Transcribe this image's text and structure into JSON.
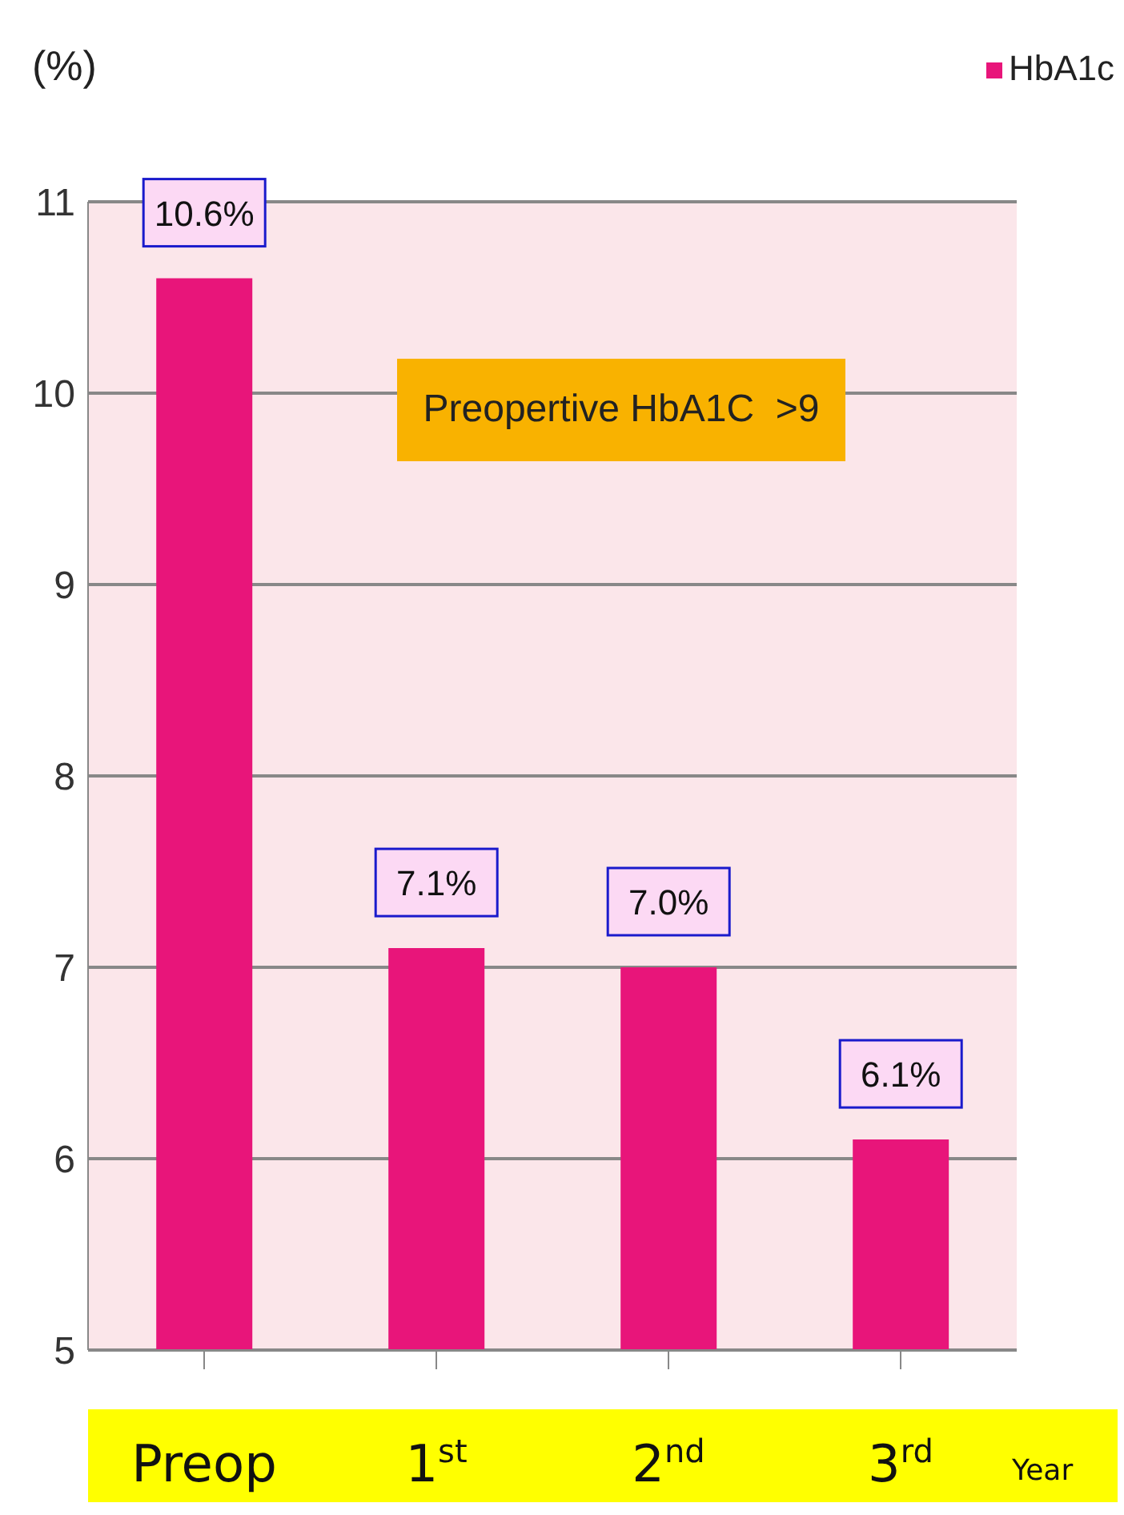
{
  "chart_data": {
    "type": "bar",
    "categories": [
      "Preop",
      "1$^{st}$",
      "2$^{nd}$",
      "3$^{rd}$"
    ],
    "xlabel": "Year",
    "ylabel": "(%)",
    "series": [
      {
        "name": "HbA1c",
        "color": "#e8157a",
        "values": [
          10.6,
          7.1,
          7.0,
          6.1
        ],
        "value_labels": [
          "10.6%",
          "7.1%",
          "7.0%",
          "6.1%"
        ]
      }
    ],
    "ylim": [
      5,
      11
    ],
    "yticks": [
      5,
      6,
      7,
      8,
      9,
      10,
      11
    ],
    "grid": "y",
    "legend": "top right",
    "annotations": [
      "Preopertive HbA1C  >9"
    ]
  }
}
